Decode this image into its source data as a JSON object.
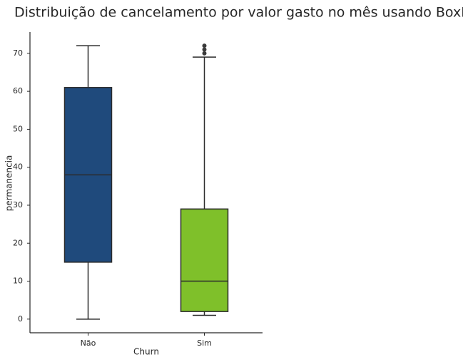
{
  "chart_data": {
    "type": "box",
    "title": "Distribuição de cancelamento por valor gasto no mês usando BoxPlot",
    "x_label": "Churn",
    "y_label": "permanencia",
    "categories": [
      "Não",
      "Sim"
    ],
    "colors": [
      "#1f4a7c",
      "#7fc02a"
    ],
    "boxes": [
      {
        "min": 0,
        "q1": 15,
        "median": 38,
        "q3": 61,
        "max": 72,
        "outliers": []
      },
      {
        "min": 1,
        "q1": 2,
        "median": 10,
        "q3": 29,
        "max": 69,
        "outliers": [
          70,
          71,
          72
        ]
      }
    ],
    "ylim": [
      -3.6,
      75.6
    ],
    "yticks": [
      0,
      10,
      20,
      30,
      40,
      50,
      60,
      70
    ]
  }
}
